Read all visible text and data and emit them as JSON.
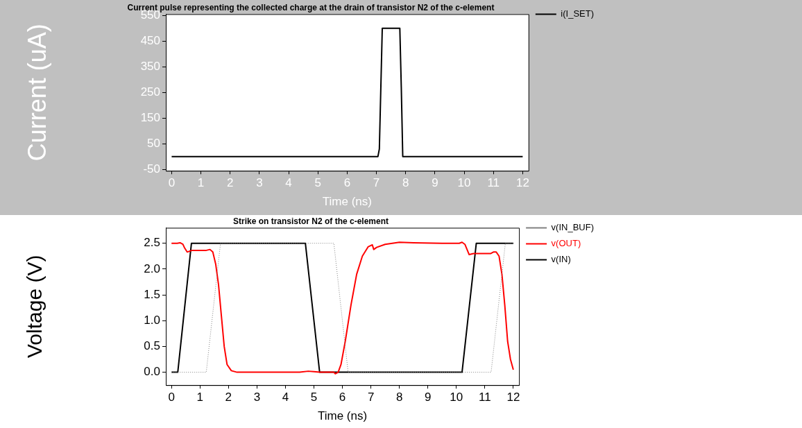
{
  "chart_data": [
    {
      "type": "line",
      "title": "Current pulse representing the collected charge at the drain of transistor N2 of the c-element",
      "xlabel": "Time (ns)",
      "ylabel": "Current (uA)",
      "xlim": [
        -0.2,
        12.2
      ],
      "xticks": [
        0,
        1,
        2,
        3,
        4,
        5,
        6,
        7,
        8,
        9,
        10,
        11,
        12
      ],
      "ylim": [
        -55,
        555
      ],
      "yticks": [
        -50,
        50,
        150,
        250,
        350,
        450,
        550
      ],
      "grid": false,
      "legend": "top right",
      "marker": "none",
      "series": [
        {
          "name": "i(I_SET)",
          "color": "#000000",
          "line_style": "solid",
          "x": [
            0,
            7.05,
            7.1,
            7.2,
            7.8,
            7.85,
            7.9,
            12
          ],
          "values": [
            0,
            0,
            30,
            500,
            500,
            270,
            0,
            0
          ]
        }
      ]
    },
    {
      "type": "line",
      "title": "Strike on transistor N2 of the c-element",
      "xlabel": "Time (ns)",
      "ylabel": "Voltage (V)",
      "xlim": [
        -0.2,
        12.2
      ],
      "xticks": [
        0,
        1,
        2,
        3,
        4,
        5,
        6,
        7,
        8,
        9,
        10,
        11,
        12
      ],
      "ylim": [
        -0.25,
        2.8
      ],
      "yticks": [
        {
          "value": 0,
          "label": "0.0"
        },
        {
          "value": 0.5,
          "label": "0.5"
        },
        {
          "value": 1,
          "label": "1.0"
        },
        {
          "value": 1.5,
          "label": "1.5"
        },
        {
          "value": 2,
          "label": "2.0"
        },
        {
          "value": 2.5,
          "label": "2.5"
        }
      ],
      "grid": false,
      "legend": "top right",
      "marker": "none",
      "series": [
        {
          "name": "v(IN_BUF)",
          "color": "#808080",
          "line_style": "dotted",
          "x": [
            0,
            1.22,
            1.72,
            5.7,
            6.2,
            11.22,
            11.72,
            12
          ],
          "values": [
            0,
            0,
            2.5,
            2.5,
            0,
            0,
            2.5,
            2.5
          ]
        },
        {
          "name": "v(OUT)",
          "color": "#ff0000",
          "line_style": "solid",
          "x": [
            0,
            0.2,
            0.3,
            0.4,
            0.45,
            0.55,
            0.7,
            1.2,
            1.35,
            1.45,
            1.55,
            1.65,
            1.75,
            1.85,
            1.95,
            2.1,
            2.3,
            4.5,
            4.8,
            5.0,
            5.2,
            5.7,
            5.75,
            5.85,
            5.95,
            6.1,
            6.3,
            6.5,
            6.7,
            6.9,
            7.05,
            7.1,
            7.2,
            7.5,
            8.0,
            8.5,
            9.5,
            10.1,
            10.2,
            10.3,
            10.45,
            10.6,
            11.2,
            11.3,
            11.4,
            11.5,
            11.6,
            11.7,
            11.8,
            11.9,
            12.0
          ],
          "values": [
            2.5,
            2.5,
            2.51,
            2.48,
            2.42,
            2.33,
            2.36,
            2.36,
            2.38,
            2.33,
            2.1,
            1.7,
            1.1,
            0.5,
            0.15,
            0.03,
            0,
            0,
            0.02,
            0.01,
            0,
            0,
            -0.03,
            0,
            0.15,
            0.6,
            1.3,
            1.9,
            2.25,
            2.43,
            2.47,
            2.38,
            2.42,
            2.48,
            2.52,
            2.51,
            2.5,
            2.5,
            2.52,
            2.48,
            2.28,
            2.3,
            2.3,
            2.33,
            2.33,
            2.25,
            1.9,
            1.3,
            0.6,
            0.25,
            0.05
          ]
        },
        {
          "name": "v(IN)",
          "color": "#000000",
          "line_style": "solid",
          "x": [
            0,
            0.22,
            0.7,
            4.7,
            5.2,
            10.2,
            10.7,
            12
          ],
          "values": [
            0,
            0,
            2.5,
            2.5,
            0,
            0,
            2.5,
            2.5
          ]
        }
      ]
    }
  ]
}
